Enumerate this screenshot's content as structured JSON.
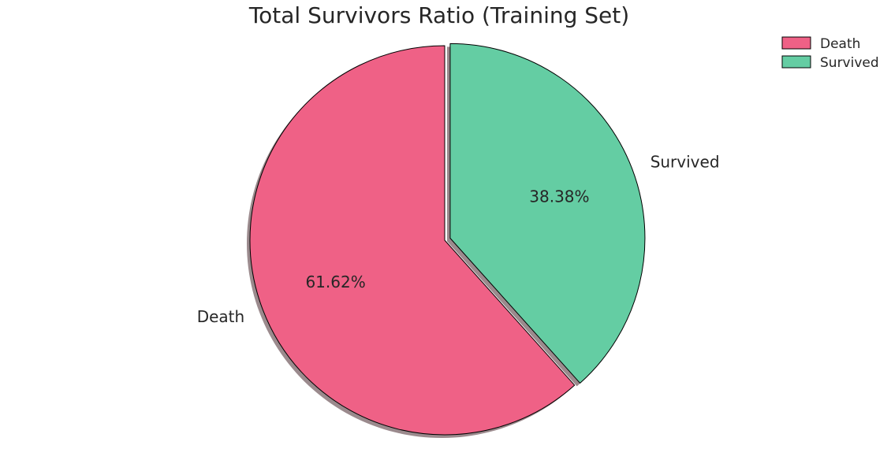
{
  "chart_data": {
    "type": "pie",
    "title": "Total Survivors Ratio (Training Set)",
    "categories": [
      "Death",
      "Survived"
    ],
    "values": [
      61.62,
      38.38
    ],
    "value_labels": [
      "61.62%",
      "38.38%"
    ],
    "colors": [
      "#ef6186",
      "#64cda3"
    ],
    "shadow_color": "#9b8a8d",
    "explode": [
      0,
      0.03
    ],
    "start_angle_deg": 90,
    "direction": "counterclockwise",
    "legend": {
      "placement": "top-right",
      "entries": [
        "Death",
        "Survived"
      ]
    }
  }
}
